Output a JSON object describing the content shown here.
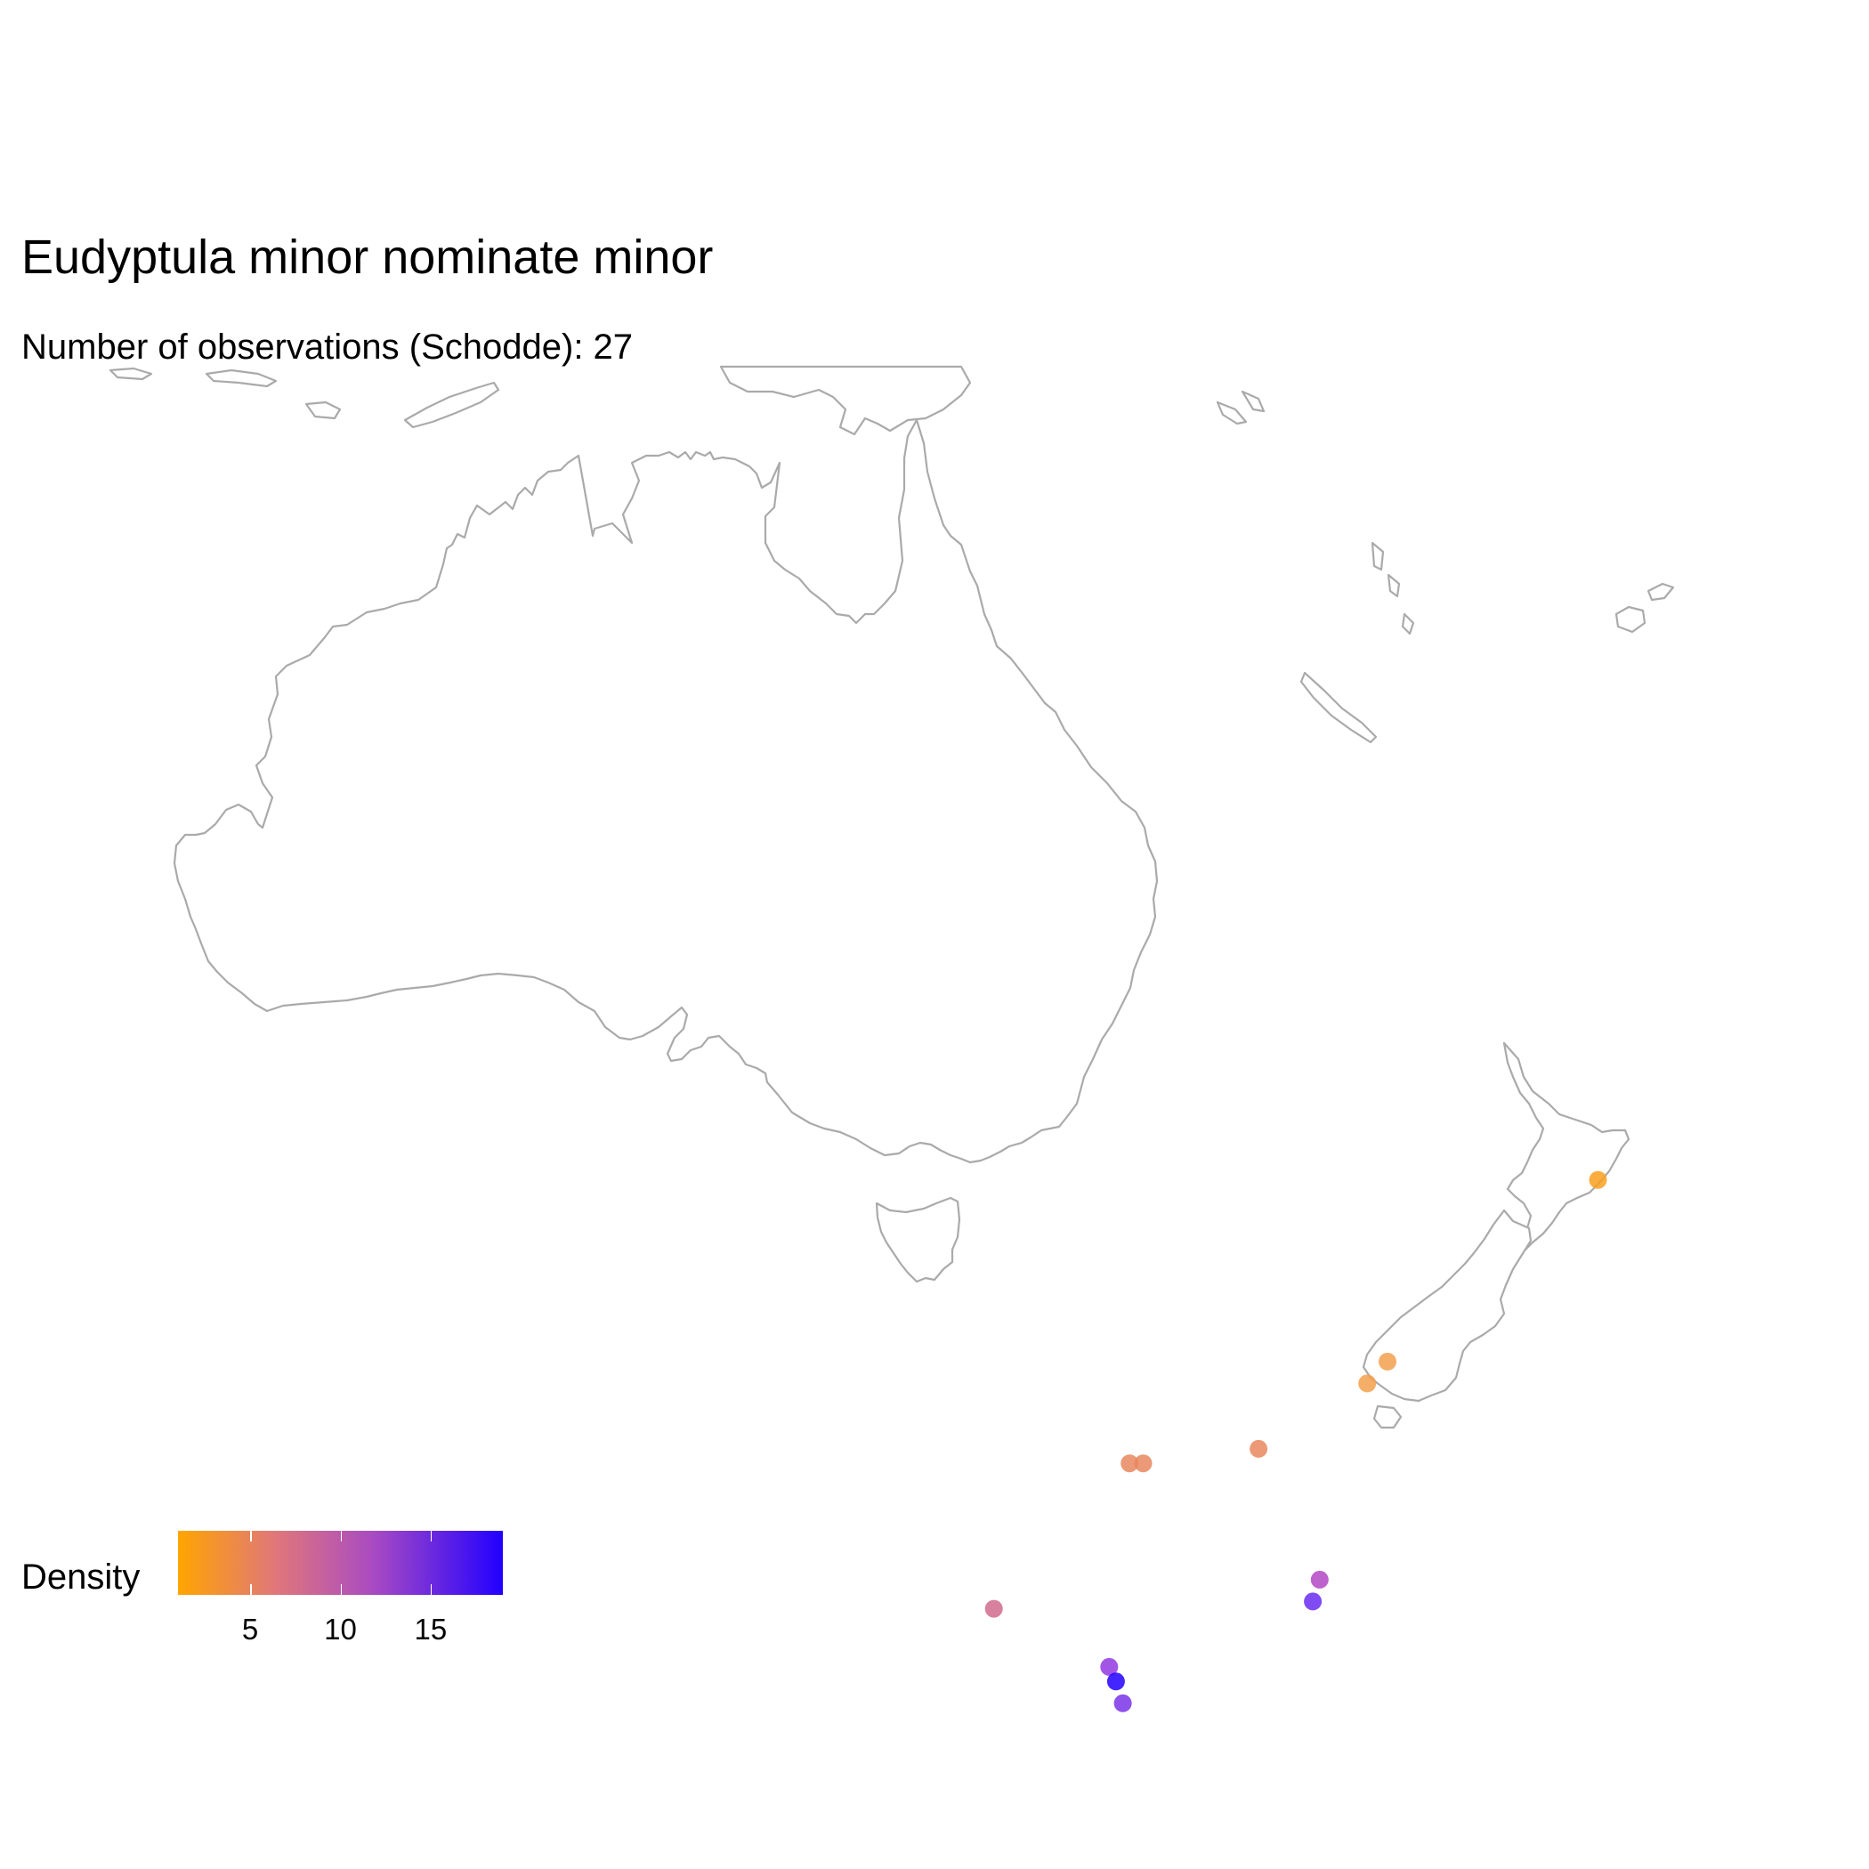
{
  "title": "Eudyptula minor nominate minor",
  "subtitle": "Number of observations (Schodde): 27",
  "legend": {
    "title": "Density",
    "min": 1,
    "max": 19,
    "colors": [
      "#FFA500",
      "#2200FF"
    ],
    "ticks": [
      {
        "value": 5,
        "label": "5"
      },
      {
        "value": 10,
        "label": "10"
      },
      {
        "value": 15,
        "label": "15"
      }
    ]
  },
  "map": {
    "region": "Australia, New Zealand and south-west Pacific",
    "land_stroke": "#aaaaaa",
    "land_fill": "#ffffff",
    "observations": [
      {
        "lon": 178.0,
        "lat": -38.7,
        "density": 1,
        "color": "#F9A01E"
      },
      {
        "lon": 174.9,
        "lat": -41.2,
        "density": 2,
        "color": "#F3A04C"
      },
      {
        "lon": 174.6,
        "lat": -41.5,
        "density": 2,
        "color": "#F3A04C"
      },
      {
        "lon": 173.0,
        "lat": -42.4,
        "density": 4,
        "color": "#E8875E"
      },
      {
        "lon": 171.3,
        "lat": -42.6,
        "density": 4,
        "color": "#E8875E"
      },
      {
        "lon": 171.1,
        "lat": -42.6,
        "density": 4,
        "color": "#E8875E"
      },
      {
        "lon": 169.1,
        "lat": -44.6,
        "density": 8,
        "color": "#D06B8D"
      },
      {
        "lon": 170.8,
        "lat": -45.4,
        "density": 15,
        "color": "#9338E0"
      },
      {
        "lon": 170.9,
        "lat": -45.6,
        "density": 19,
        "color": "#2200FF"
      },
      {
        "lon": 171.0,
        "lat": -45.9,
        "density": 16,
        "color": "#7A33E8"
      },
      {
        "lon": 173.9,
        "lat": -44.2,
        "density": 13,
        "color": "#B347C6"
      },
      {
        "lon": 173.8,
        "lat": -44.5,
        "density": 16,
        "color": "#6A2BF0"
      }
    ]
  }
}
